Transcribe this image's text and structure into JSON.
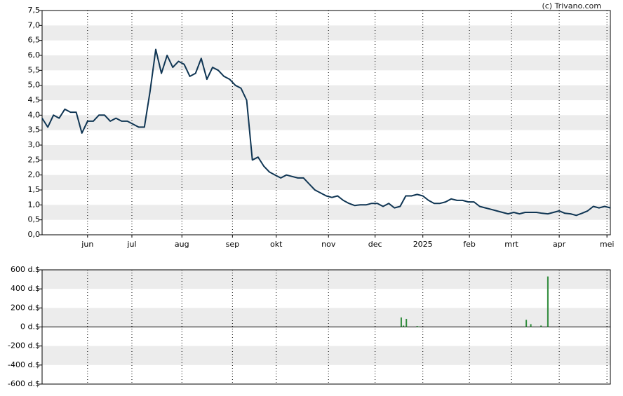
{
  "credit": "(c) Trivano.com",
  "chart_data": [
    {
      "type": "line",
      "color": "#0f3553",
      "grid": true,
      "values": [
        3.9,
        3.6,
        4.0,
        3.9,
        4.2,
        4.1,
        4.1,
        3.4,
        3.8,
        3.8,
        4.0,
        4.0,
        3.8,
        3.9,
        3.8,
        3.8,
        3.7,
        3.6,
        3.6,
        4.8,
        6.2,
        5.4,
        6.0,
        5.6,
        5.8,
        5.7,
        5.3,
        5.4,
        5.9,
        5.2,
        5.6,
        5.5,
        5.3,
        5.2,
        5.0,
        4.9,
        4.5,
        2.5,
        2.6,
        2.3,
        2.1,
        2.0,
        1.9,
        2.0,
        1.95,
        1.9,
        1.9,
        1.7,
        1.5,
        1.4,
        1.3,
        1.25,
        1.3,
        1.15,
        1.05,
        0.98,
        1.0,
        1.0,
        1.05,
        1.05,
        0.95,
        1.05,
        0.9,
        0.95,
        1.3,
        1.3,
        1.35,
        1.3,
        1.15,
        1.05,
        1.05,
        1.1,
        1.2,
        1.15,
        1.15,
        1.1,
        1.1,
        0.95,
        0.9,
        0.85,
        0.8,
        0.75,
        0.7,
        0.75,
        0.7,
        0.75,
        0.75,
        0.75,
        0.72,
        0.7,
        0.75,
        0.8,
        0.72,
        0.7,
        0.65,
        0.72,
        0.8,
        0.95,
        0.9,
        0.95,
        0.9
      ],
      "xlim": [
        0,
        100
      ],
      "xticks": [
        {
          "value": 8.0,
          "label": "jun"
        },
        {
          "value": 15.8,
          "label": "jul"
        },
        {
          "value": 24.6,
          "label": "aug"
        },
        {
          "value": 33.5,
          "label": "sep"
        },
        {
          "value": 41.2,
          "label": "okt"
        },
        {
          "value": 50.4,
          "label": "nov"
        },
        {
          "value": 58.6,
          "label": "dec"
        },
        {
          "value": 67.0,
          "label": "2025"
        },
        {
          "value": 75.2,
          "label": "feb"
        },
        {
          "value": 82.6,
          "label": "mrt"
        },
        {
          "value": 91.0,
          "label": "apr"
        },
        {
          "value": 99.4,
          "label": "mei"
        }
      ],
      "ylim": [
        0,
        7.5
      ],
      "yticks": [
        {
          "value": 0,
          "label": "0,0"
        },
        {
          "value": 0.5,
          "label": "0,5"
        },
        {
          "value": 1,
          "label": "1,0"
        },
        {
          "value": 1.5,
          "label": "1,5"
        },
        {
          "value": 2,
          "label": "2,0"
        },
        {
          "value": 2.5,
          "label": "2,5"
        },
        {
          "value": 3,
          "label": "3,0"
        },
        {
          "value": 3.5,
          "label": "3,5"
        },
        {
          "value": 4,
          "label": "4,0"
        },
        {
          "value": 4.5,
          "label": "4,5"
        },
        {
          "value": 5,
          "label": "5,0"
        },
        {
          "value": 5.5,
          "label": "5,5"
        },
        {
          "value": 6,
          "label": "6,0"
        },
        {
          "value": 6.5,
          "label": "6,5"
        },
        {
          "value": 7,
          "label": "7,0"
        },
        {
          "value": 7.5,
          "label": "7,5"
        }
      ]
    },
    {
      "type": "bar",
      "color": "#2e8b3a",
      "grid": true,
      "x": [
        63.2,
        63.6,
        64.1,
        66.0,
        66.3,
        85.2,
        86.0,
        87.8,
        89.0
      ],
      "values": [
        100,
        15,
        85,
        10,
        5,
        75,
        30,
        15,
        530
      ],
      "xlim": [
        0,
        100
      ],
      "xticks": [
        8.0,
        15.8,
        24.6,
        33.5,
        41.2,
        50.4,
        58.6,
        67.0,
        75.2,
        82.6,
        91.0,
        99.4
      ],
      "ylim": [
        -600,
        600
      ],
      "yticks": [
        {
          "value": -600,
          "label": "-600 d.$"
        },
        {
          "value": -400,
          "label": "-400 d.$"
        },
        {
          "value": -200,
          "label": "-200 d.$"
        },
        {
          "value": 0,
          "label": "0 d.$"
        },
        {
          "value": 200,
          "label": "200 d.$"
        },
        {
          "value": 400,
          "label": "400 d.$"
        },
        {
          "value": 600,
          "label": "600 d.$"
        }
      ]
    }
  ]
}
